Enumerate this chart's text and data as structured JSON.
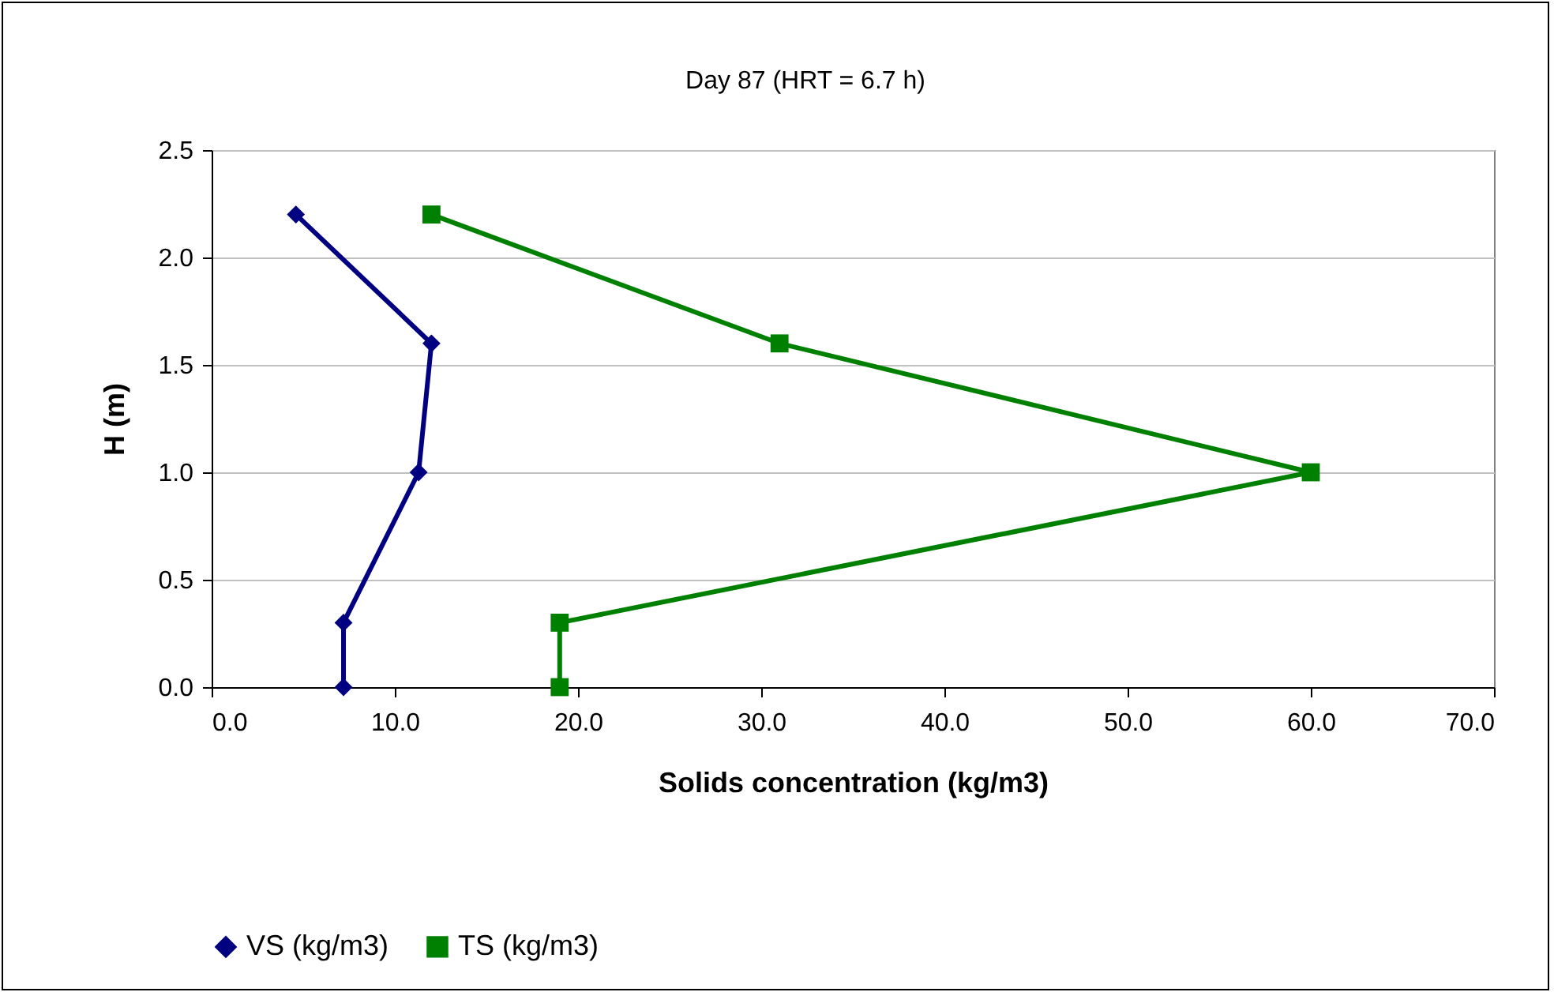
{
  "chart_data": {
    "type": "line",
    "title": "Day 87 (HRT = 6.7 h)",
    "xlabel": "Solids concentration (kg/m3)",
    "ylabel": "H (m)",
    "series": [
      {
        "name": "VS (kg/m3)",
        "color": "#000080",
        "marker": "diamond",
        "x": [
          4.6,
          12.0,
          11.3,
          7.2,
          7.2
        ],
        "values": [
          2.2,
          1.6,
          1.0,
          0.3,
          0.0
        ]
      },
      {
        "name": "TS (kg/m3)",
        "color": "#008000",
        "marker": "square",
        "x": [
          12,
          31,
          60,
          19,
          19
        ],
        "values": [
          2.2,
          1.6,
          1.0,
          0.3,
          0.0
        ]
      }
    ],
    "xlim": [
      0,
      70
    ],
    "xticks": [
      {
        "value": 0,
        "label": "0.0"
      },
      {
        "value": 10,
        "label": "10.0"
      },
      {
        "value": 20,
        "label": "20.0"
      },
      {
        "value": 30,
        "label": "30.0"
      },
      {
        "value": 40,
        "label": "40.0"
      },
      {
        "value": 50,
        "label": "50.0"
      },
      {
        "value": 60,
        "label": "60.0"
      },
      {
        "value": 70,
        "label": "70.0"
      }
    ],
    "ylim": [
      0,
      2.5
    ],
    "yticks": [
      {
        "value": 0,
        "label": "0.0"
      },
      {
        "value": 0.5,
        "label": "0.5"
      },
      {
        "value": 1,
        "label": "1.0"
      },
      {
        "value": 1.5,
        "label": "1.5"
      },
      {
        "value": 2,
        "label": "2.0"
      },
      {
        "value": 2.5,
        "label": "2.5"
      }
    ],
    "grid": "y",
    "legend": "bottom",
    "line_style": "solid"
  }
}
